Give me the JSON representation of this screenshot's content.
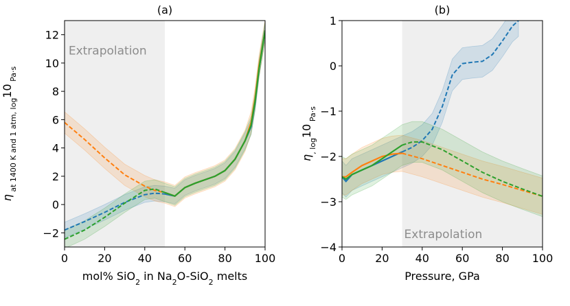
{
  "colors": {
    "blue": "#1f77b4",
    "orange": "#ff7f0e",
    "green": "#2ca02c",
    "extrapolation_shade": "#efefef",
    "extrapolation_text": "#8c8c8c"
  },
  "chart_data": [
    {
      "type": "line",
      "title": "(a)",
      "xlabel_parts": [
        "mol% SiO",
        "2",
        " in Na",
        "2",
        "O-SiO",
        "2",
        " melts"
      ],
      "ylabel_parts": [
        "η",
        " at 1400 K and 1 atm, log",
        "10",
        " Pa·s"
      ],
      "xlim": [
        0,
        100
      ],
      "ylim": [
        -3,
        13
      ],
      "xticks": [
        0,
        20,
        40,
        60,
        80,
        100
      ],
      "yticks": [
        -2,
        0,
        2,
        4,
        6,
        8,
        10,
        12
      ],
      "ytick_labels": [
        "−2",
        "0",
        "2",
        "4",
        "6",
        "8",
        "10",
        "12"
      ],
      "extrapolation_region": [
        0,
        50
      ],
      "annotation": {
        "text": "Extrapolation",
        "x": 2,
        "y": 10.6
      },
      "series": [
        {
          "name": "blue",
          "color": "#1f77b4",
          "band_halfwidth": 0.55,
          "x": [
            0,
            10,
            20,
            30,
            40,
            45,
            50,
            55,
            60,
            65,
            70,
            75,
            80,
            85,
            90,
            93,
            95,
            97,
            100
          ],
          "y": [
            -1.8,
            -1.2,
            -0.55,
            0.15,
            0.7,
            0.8,
            0.75,
            0.6,
            1.2,
            1.5,
            1.75,
            2.0,
            2.4,
            3.2,
            4.5,
            5.5,
            7.2,
            9.6,
            12.3
          ],
          "dashed_until": 50
        },
        {
          "name": "orange",
          "color": "#ff7f0e",
          "band_halfwidth": 0.75,
          "x": [
            0,
            10,
            20,
            30,
            40,
            45,
            50,
            55,
            60,
            65,
            70,
            75,
            80,
            85,
            90,
            93,
            95,
            97,
            100
          ],
          "y": [
            5.8,
            4.6,
            3.3,
            2.1,
            1.3,
            1.0,
            0.85,
            0.6,
            1.2,
            1.5,
            1.75,
            2.0,
            2.4,
            3.2,
            4.5,
            5.8,
            7.5,
            9.8,
            12.3
          ],
          "dashed_until": 50
        },
        {
          "name": "green",
          "color": "#2ca02c",
          "band_halfwidth": 0.65,
          "x": [
            0,
            10,
            20,
            30,
            40,
            45,
            50,
            55,
            60,
            65,
            70,
            75,
            80,
            85,
            90,
            93,
            95,
            97,
            100
          ],
          "y": [
            -2.45,
            -1.8,
            -0.9,
            0.1,
            1.0,
            1.1,
            0.85,
            0.6,
            1.2,
            1.5,
            1.75,
            2.0,
            2.4,
            3.2,
            4.5,
            5.6,
            7.3,
            9.6,
            12.3
          ],
          "dashed_until": 50
        }
      ]
    },
    {
      "type": "line",
      "title": "(b)",
      "xlabel_parts": [
        "Pressure, GPa"
      ],
      "ylabel_parts": [
        "η",
        ", log",
        "10",
        " Pa·s"
      ],
      "xlim": [
        0,
        100
      ],
      "ylim": [
        -4,
        1
      ],
      "xticks": [
        0,
        20,
        40,
        60,
        80,
        100
      ],
      "yticks": [
        -4,
        -3,
        -2,
        -1,
        0,
        1
      ],
      "ytick_labels": [
        "−4",
        "−3",
        "−2",
        "−1",
        "0",
        "1"
      ],
      "extrapolation_region": [
        30,
        100
      ],
      "annotation": {
        "text": "Extrapolation",
        "x": 31,
        "y": -3.8
      },
      "series": [
        {
          "name": "blue",
          "color": "#1f77b4",
          "band_halfwidth": 0.35,
          "x": [
            0,
            2,
            5,
            10,
            15,
            20,
            25,
            30,
            35,
            40,
            45,
            50,
            55,
            60,
            65,
            70,
            75,
            80,
            85,
            88
          ],
          "y": [
            -2.45,
            -2.55,
            -2.4,
            -2.3,
            -2.2,
            -2.1,
            -2.0,
            -1.9,
            -1.8,
            -1.65,
            -1.4,
            -0.9,
            -0.2,
            0.05,
            0.08,
            0.1,
            0.25,
            0.55,
            0.88,
            1.0
          ],
          "dashed_from": 30
        },
        {
          "name": "orange",
          "color": "#ff7f0e",
          "band_halfwidth": 0.4,
          "x": [
            0,
            2,
            5,
            10,
            15,
            20,
            25,
            30,
            40,
            50,
            60,
            70,
            80,
            90,
            100
          ],
          "y": [
            -2.45,
            -2.45,
            -2.35,
            -2.2,
            -2.1,
            -2.0,
            -1.95,
            -1.93,
            -2.05,
            -2.2,
            -2.35,
            -2.5,
            -2.62,
            -2.75,
            -2.88
          ],
          "dashed_from": 30
        },
        {
          "name": "green",
          "color": "#2ca02c",
          "band_halfwidth": 0.45,
          "x": [
            0,
            2,
            5,
            10,
            15,
            20,
            25,
            30,
            35,
            40,
            50,
            60,
            70,
            80,
            90,
            100
          ],
          "y": [
            -2.45,
            -2.5,
            -2.4,
            -2.3,
            -2.2,
            -2.05,
            -1.9,
            -1.75,
            -1.68,
            -1.68,
            -1.85,
            -2.1,
            -2.35,
            -2.55,
            -2.72,
            -2.88
          ],
          "dashed_from": 30
        }
      ]
    }
  ]
}
